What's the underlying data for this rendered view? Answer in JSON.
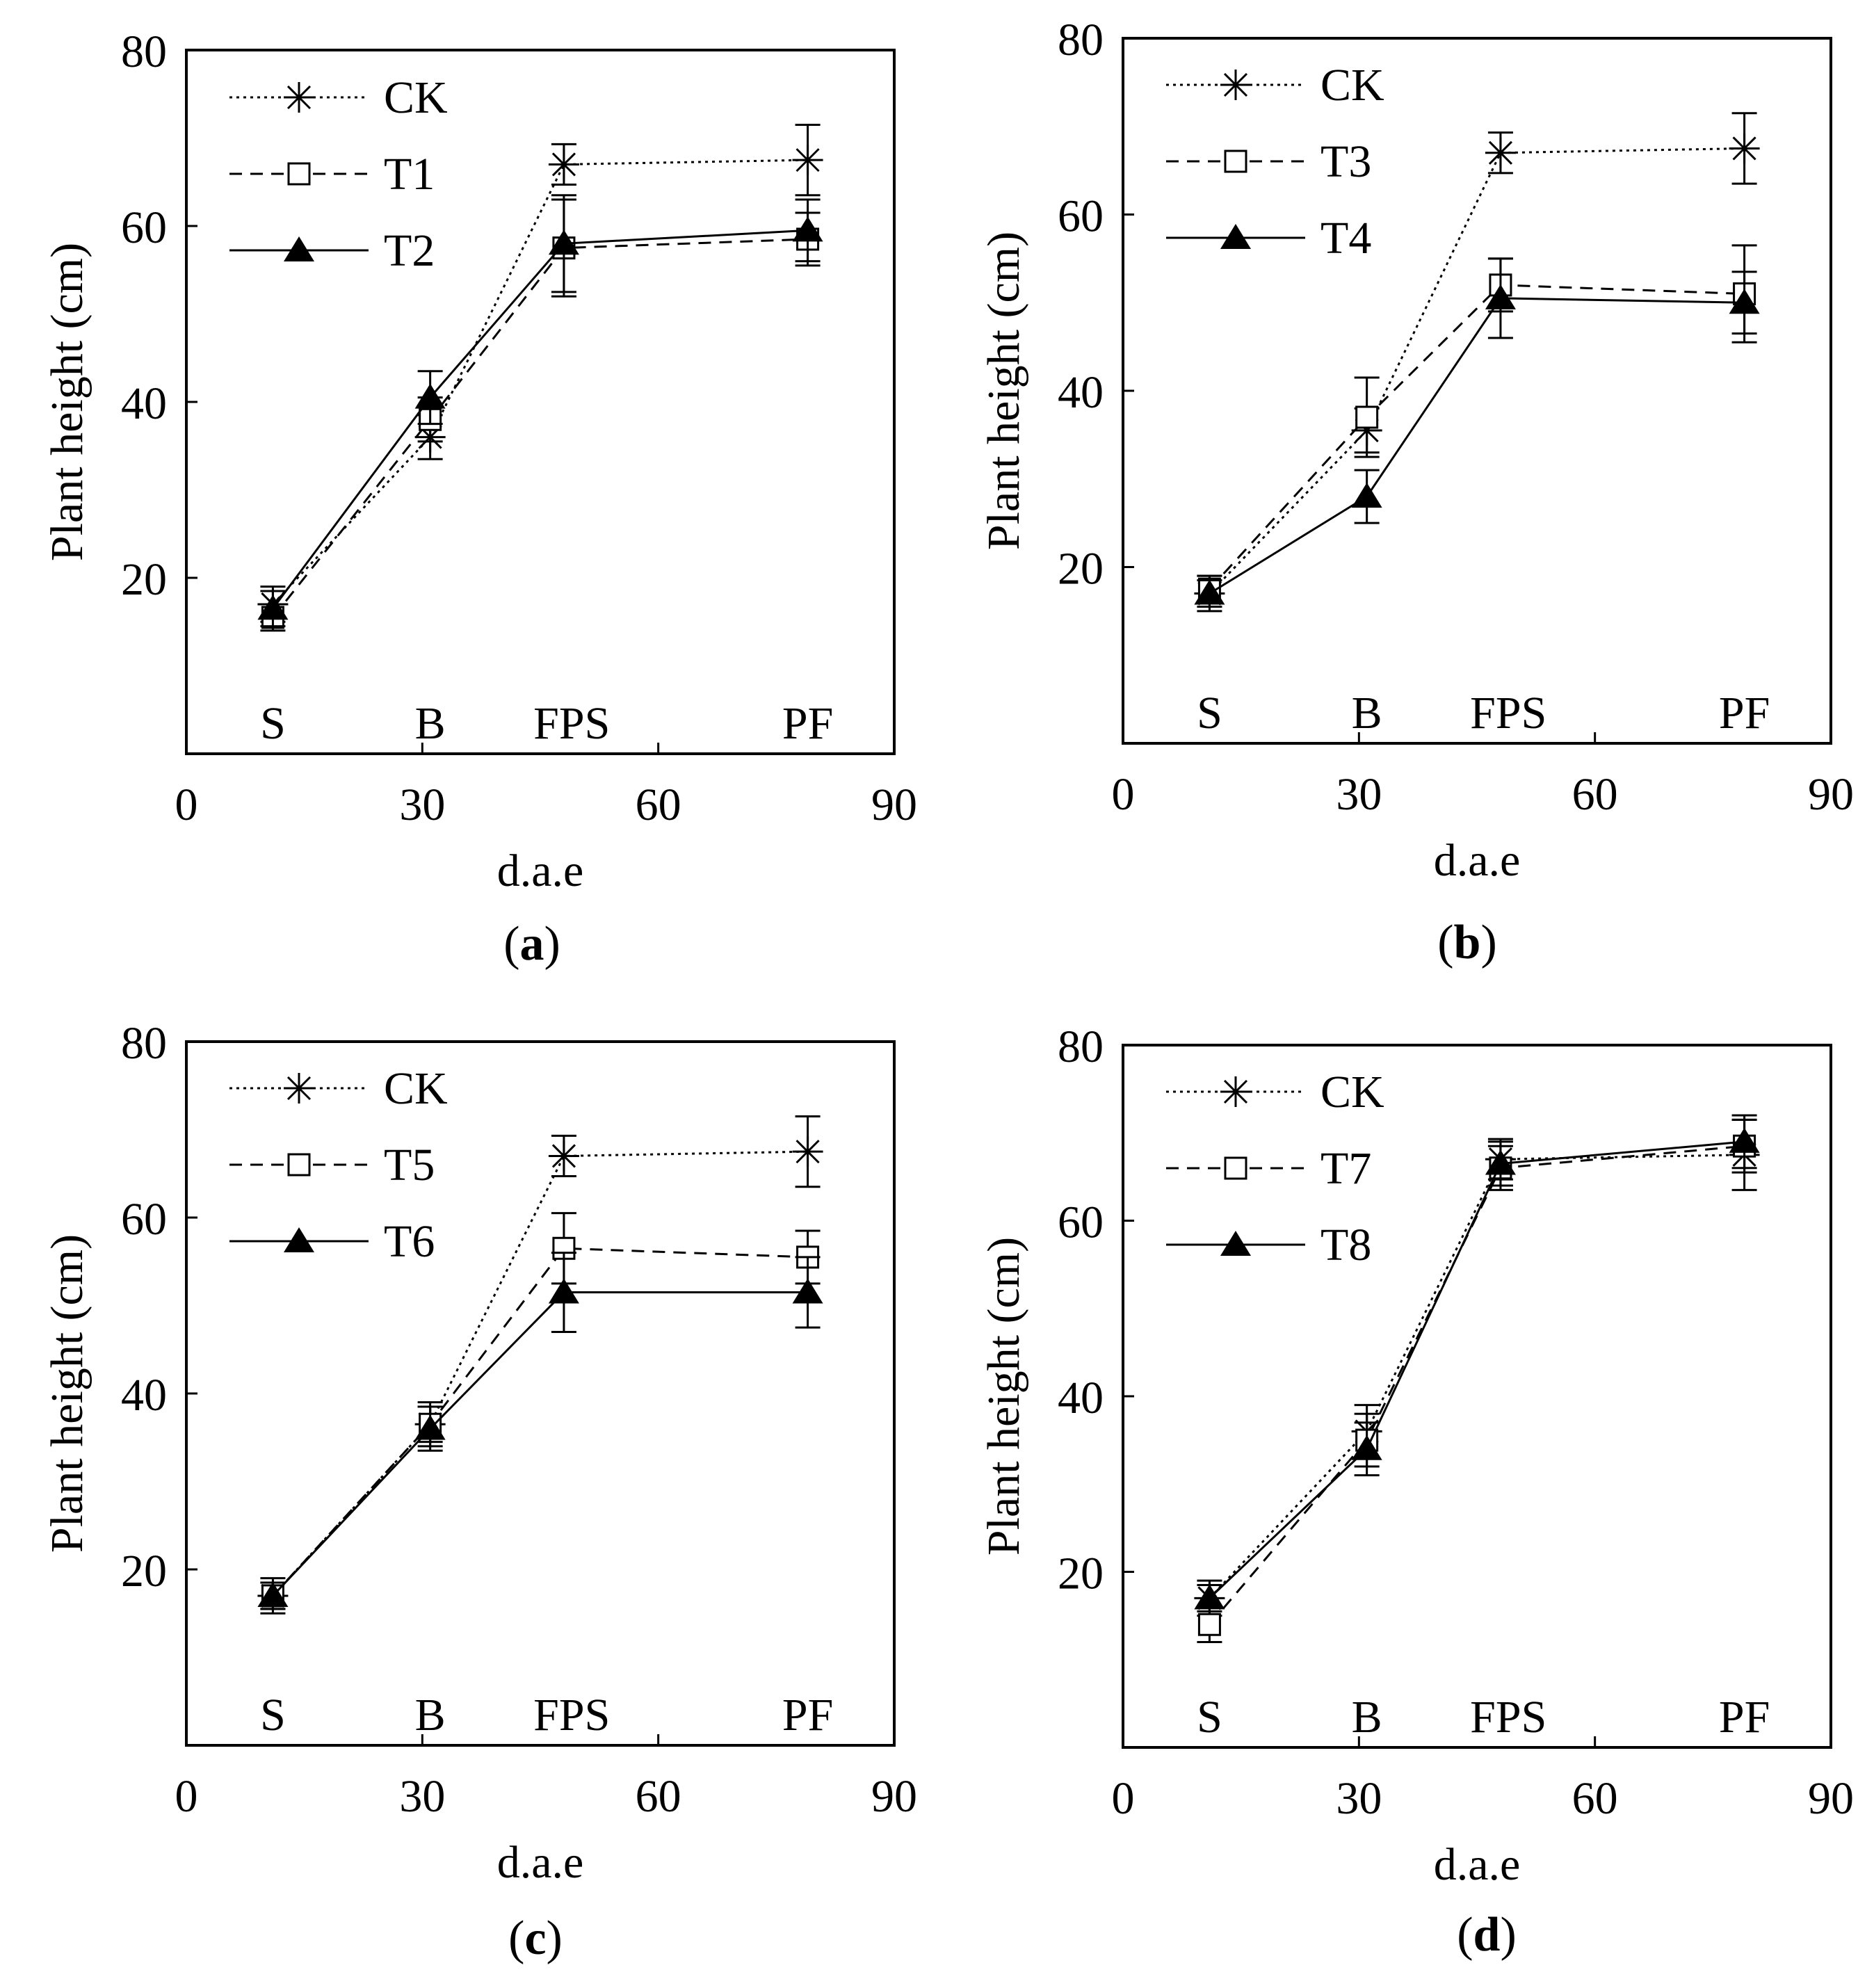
{
  "chart_data": [
    {
      "type": "line",
      "panel_label": "a",
      "xlabel": "d.a.e",
      "ylabel": "Plant height (cm)",
      "xlim": [
        0,
        90
      ],
      "ylim": [
        0,
        80
      ],
      "xticks": [
        "0",
        "30",
        "60",
        "90"
      ],
      "yticks": [
        "20",
        "40",
        "60",
        "80"
      ],
      "stage_labels": [
        {
          "x": 11,
          "label": "S"
        },
        {
          "x": 31,
          "label": "B"
        },
        {
          "x": 49,
          "label": "FPS"
        },
        {
          "x": 79,
          "label": "PF"
        }
      ],
      "legend": [
        "CK",
        "T1",
        "T2"
      ],
      "series": [
        {
          "name": "CK",
          "line": "dotted",
          "marker": "asterisk",
          "points": [
            {
              "x": 11,
              "y": 17.0,
              "err": 2.0
            },
            {
              "x": 31,
              "y": 36.0,
              "err": 2.5
            },
            {
              "x": 48,
              "y": 67.0,
              "err": 2.3
            },
            {
              "x": 79,
              "y": 67.5,
              "err": 4.0
            }
          ]
        },
        {
          "name": "T1",
          "line": "dashed",
          "marker": "square",
          "points": [
            {
              "x": 11,
              "y": 15.5,
              "err": 1.5
            },
            {
              "x": 31,
              "y": 38.0,
              "err": 2.5
            },
            {
              "x": 48,
              "y": 57.5,
              "err": 5.5
            },
            {
              "x": 79,
              "y": 58.5,
              "err": 3.0
            }
          ]
        },
        {
          "name": "T2",
          "line": "solid",
          "marker": "triangle",
          "points": [
            {
              "x": 11,
              "y": 16.5,
              "err": 2.0
            },
            {
              "x": 31,
              "y": 40.5,
              "err": 3.0
            },
            {
              "x": 48,
              "y": 58.0,
              "err": 5.5
            },
            {
              "x": 79,
              "y": 59.5,
              "err": 3.5
            }
          ]
        }
      ]
    },
    {
      "type": "line",
      "panel_label": "b",
      "xlabel": "d.a.e",
      "ylabel": "Plant height (cm)",
      "xlim": [
        0,
        90
      ],
      "ylim": [
        0,
        80
      ],
      "xticks": [
        "0",
        "30",
        "60",
        "90"
      ],
      "yticks": [
        "20",
        "40",
        "60",
        "80"
      ],
      "stage_labels": [
        {
          "x": 11,
          "label": "S"
        },
        {
          "x": 31,
          "label": "B"
        },
        {
          "x": 49,
          "label": "FPS"
        },
        {
          "x": 79,
          "label": "PF"
        }
      ],
      "legend": [
        "CK",
        "T3",
        "T4"
      ],
      "series": [
        {
          "name": "CK",
          "line": "dotted",
          "marker": "asterisk",
          "points": [
            {
              "x": 11,
              "y": 17.0,
              "err": 2.0
            },
            {
              "x": 31,
              "y": 35.5,
              "err": 2.5
            },
            {
              "x": 48,
              "y": 67.0,
              "err": 2.3
            },
            {
              "x": 79,
              "y": 67.5,
              "err": 4.0
            }
          ]
        },
        {
          "name": "T3",
          "line": "dashed",
          "marker": "square",
          "points": [
            {
              "x": 11,
              "y": 17.5,
              "err": 1.5
            },
            {
              "x": 31,
              "y": 37.0,
              "err": 4.5
            },
            {
              "x": 48,
              "y": 52.0,
              "err": 3.0
            },
            {
              "x": 79,
              "y": 51.0,
              "err": 5.5
            }
          ]
        },
        {
          "name": "T4",
          "line": "solid",
          "marker": "triangle",
          "points": [
            {
              "x": 11,
              "y": 17.0,
              "err": 1.5
            },
            {
              "x": 31,
              "y": 28.0,
              "err": 3.0
            },
            {
              "x": 48,
              "y": 50.5,
              "err": 4.5
            },
            {
              "x": 79,
              "y": 50.0,
              "err": 3.5
            }
          ]
        }
      ]
    },
    {
      "type": "line",
      "panel_label": "c",
      "xlabel": "d.a.e",
      "ylabel": "Plant height (cm)",
      "xlim": [
        0,
        90
      ],
      "ylim": [
        0,
        80
      ],
      "xticks": [
        "0",
        "30",
        "60",
        "90"
      ],
      "yticks": [
        "20",
        "40",
        "60",
        "80"
      ],
      "stage_labels": [
        {
          "x": 11,
          "label": "S"
        },
        {
          "x": 31,
          "label": "B"
        },
        {
          "x": 49,
          "label": "FPS"
        },
        {
          "x": 79,
          "label": "PF"
        }
      ],
      "legend": [
        "CK",
        "T5",
        "T6"
      ],
      "series": [
        {
          "name": "CK",
          "line": "dotted",
          "marker": "asterisk",
          "points": [
            {
              "x": 11,
              "y": 17.0,
              "err": 2.0
            },
            {
              "x": 31,
              "y": 36.5,
              "err": 2.5
            },
            {
              "x": 48,
              "y": 67.0,
              "err": 2.3
            },
            {
              "x": 79,
              "y": 67.5,
              "err": 4.0
            }
          ]
        },
        {
          "name": "T5",
          "line": "dashed",
          "marker": "square",
          "points": [
            {
              "x": 11,
              "y": 17.0,
              "err": 1.5
            },
            {
              "x": 31,
              "y": 36.5,
              "err": 2.0
            },
            {
              "x": 48,
              "y": 56.5,
              "err": 4.0
            },
            {
              "x": 79,
              "y": 55.5,
              "err": 3.0
            }
          ]
        },
        {
          "name": "T6",
          "line": "solid",
          "marker": "triangle",
          "points": [
            {
              "x": 11,
              "y": 17.0,
              "err": 1.5
            },
            {
              "x": 31,
              "y": 36.0,
              "err": 2.5
            },
            {
              "x": 48,
              "y": 51.5,
              "err": 4.5
            },
            {
              "x": 79,
              "y": 51.5,
              "err": 4.0
            }
          ]
        }
      ]
    },
    {
      "type": "line",
      "panel_label": "d",
      "xlabel": "d.a.e",
      "ylabel": "Plant height (cm)",
      "xlim": [
        0,
        90
      ],
      "ylim": [
        0,
        80
      ],
      "xticks": [
        "0",
        "30",
        "60",
        "90"
      ],
      "yticks": [
        "20",
        "40",
        "60",
        "80"
      ],
      "stage_labels": [
        {
          "x": 11,
          "label": "S"
        },
        {
          "x": 31,
          "label": "B"
        },
        {
          "x": 49,
          "label": "FPS"
        },
        {
          "x": 79,
          "label": "PF"
        }
      ],
      "legend": [
        "CK",
        "T7",
        "T8"
      ],
      "series": [
        {
          "name": "CK",
          "line": "dotted",
          "marker": "asterisk",
          "points": [
            {
              "x": 11,
              "y": 17.0,
              "err": 2.0
            },
            {
              "x": 31,
              "y": 36.0,
              "err": 3.0
            },
            {
              "x": 48,
              "y": 67.0,
              "err": 2.3
            },
            {
              "x": 79,
              "y": 67.5,
              "err": 4.0
            }
          ]
        },
        {
          "name": "T7",
          "line": "dashed",
          "marker": "square",
          "points": [
            {
              "x": 11,
              "y": 14.0,
              "err": 2.0
            },
            {
              "x": 31,
              "y": 35.0,
              "err": 3.0
            },
            {
              "x": 48,
              "y": 66.0,
              "err": 2.5
            },
            {
              "x": 79,
              "y": 68.5,
              "err": 3.0
            }
          ]
        },
        {
          "name": "T8",
          "line": "solid",
          "marker": "triangle",
          "points": [
            {
              "x": 11,
              "y": 17.0,
              "err": 1.5
            },
            {
              "x": 31,
              "y": 34.0,
              "err": 3.0
            },
            {
              "x": 48,
              "y": 66.5,
              "err": 2.5
            },
            {
              "x": 79,
              "y": 69.0,
              "err": 3.0
            }
          ]
        }
      ]
    }
  ]
}
